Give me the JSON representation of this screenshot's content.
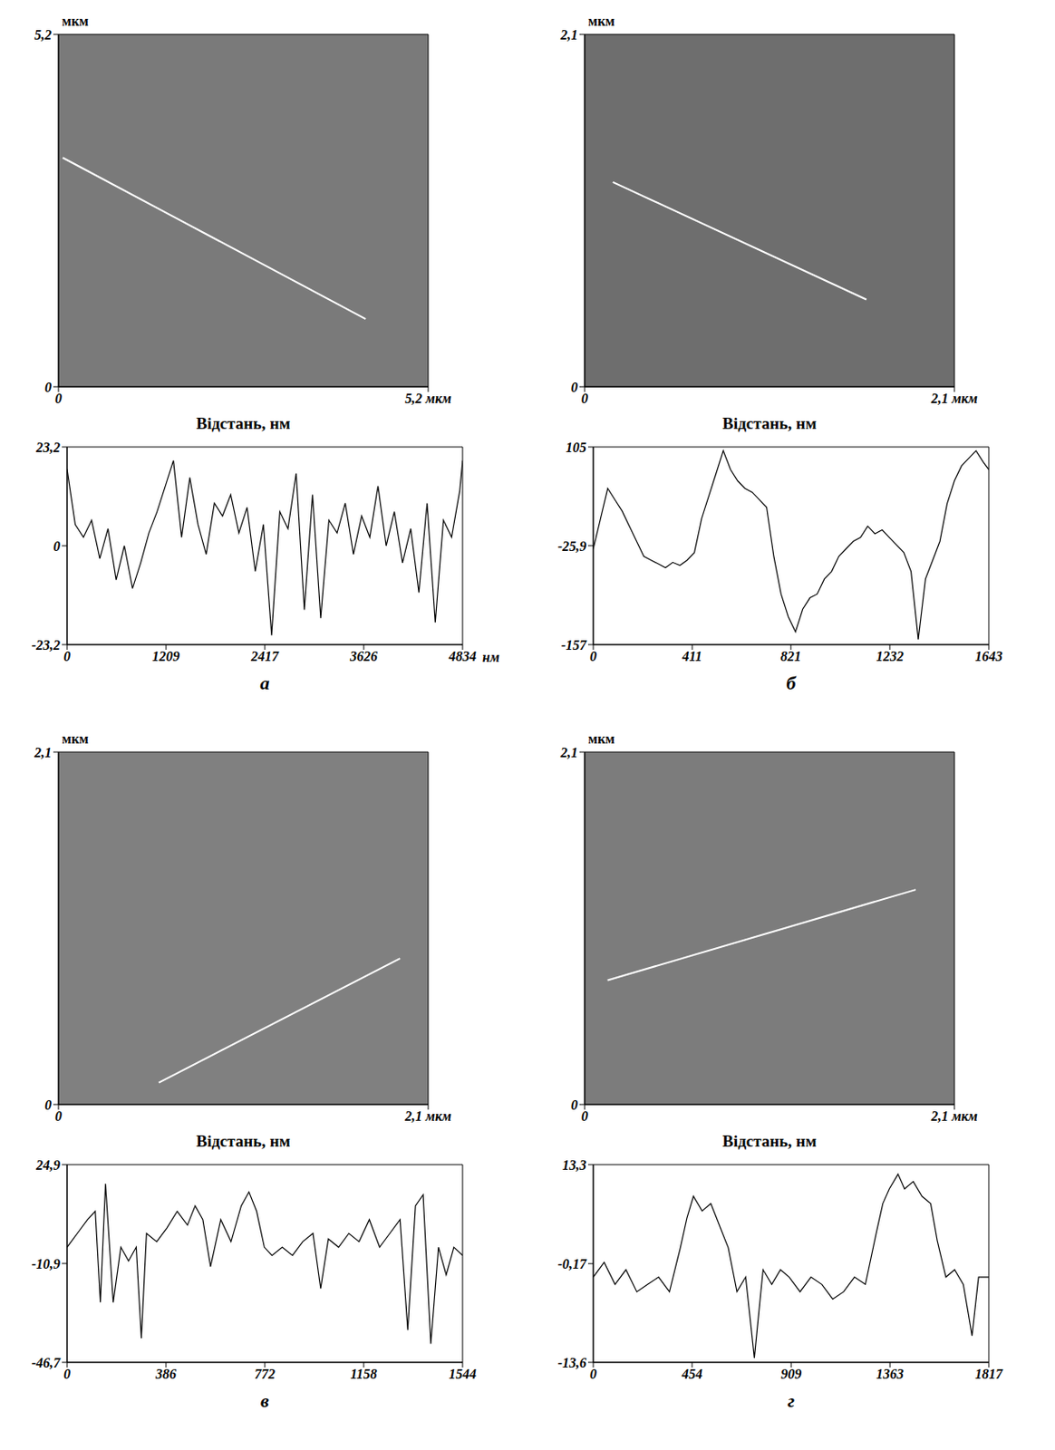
{
  "chart_data": [
    {
      "type": "image",
      "color": "#7a7a7a",
      "xlim": [
        0,
        5.2
      ],
      "ylim": [
        0,
        5.2
      ],
      "xticks": [
        0,
        {
          "value": 5.2,
          "label": "5,2 мкм"
        }
      ],
      "yticks": [
        0,
        {
          "value": 5.2,
          "label": "5,2"
        }
      ],
      "y_label": "мкм",
      "x_label": "Відстань, нм",
      "scan_line": {
        "x": [
          0.06,
          4.32
        ],
        "y": [
          3.38,
          1.0
        ],
        "color": "#ffffff"
      }
    },
    {
      "type": "line",
      "label": "а",
      "color": "#000000",
      "xlim": [
        0,
        4834
      ],
      "ylim": [
        -23.2,
        23.2
      ],
      "xticks": [
        0,
        1209,
        2417,
        3626,
        4834
      ],
      "yticks": [
        {
          "value": 23.2,
          "label": "23,2"
        },
        0,
        {
          "value": -23.2,
          "label": "-23,2"
        }
      ],
      "x_label": "нм",
      "x": [
        0,
        100,
        200,
        300,
        400,
        500,
        600,
        700,
        800,
        900,
        1000,
        1100,
        1200,
        1300,
        1400,
        1500,
        1600,
        1700,
        1800,
        1900,
        2000,
        2100,
        2200,
        2300,
        2400,
        2500,
        2600,
        2700,
        2800,
        2900,
        3000,
        3100,
        3200,
        3300,
        3400,
        3500,
        3600,
        3700,
        3800,
        3900,
        4000,
        4100,
        4200,
        4300,
        4400,
        4500,
        4600,
        4700,
        4800,
        4834
      ],
      "values": [
        18,
        5,
        2,
        6,
        -3,
        4,
        -8,
        0,
        -10,
        -4,
        3,
        8,
        14,
        20,
        2,
        16,
        5,
        -2,
        10,
        7,
        12,
        3,
        9,
        -6,
        5,
        -21,
        8,
        4,
        17,
        -15,
        12,
        -17,
        6,
        3,
        10,
        -2,
        7,
        2,
        14,
        0,
        8,
        -4,
        4,
        -11,
        10,
        -18,
        6,
        2,
        13,
        20
      ]
    },
    {
      "type": "image",
      "color": "#6e6e6e",
      "xlim": [
        0,
        2.1
      ],
      "ylim": [
        0,
        2.1
      ],
      "xticks": [
        0,
        {
          "value": 2.1,
          "label": "2,1 мкм"
        }
      ],
      "yticks": [
        0,
        {
          "value": 2.1,
          "label": "2,1"
        }
      ],
      "y_label": "мкм",
      "x_label": "Відстань, нм",
      "scan_line": {
        "x": [
          0.16,
          1.6
        ],
        "y": [
          1.22,
          0.52
        ],
        "color": "#ffffff"
      }
    },
    {
      "type": "line",
      "label": "б",
      "color": "#000000",
      "xlim": [
        0,
        1643
      ],
      "ylim": [
        -157,
        105
      ],
      "xticks": [
        0,
        411,
        821,
        1232,
        1643
      ],
      "yticks": [
        105,
        {
          "value": -25.9,
          "label": "-25,9"
        },
        -157
      ],
      "x": [
        0,
        30,
        60,
        90,
        120,
        150,
        180,
        210,
        240,
        270,
        300,
        330,
        360,
        390,
        420,
        450,
        480,
        510,
        540,
        570,
        600,
        630,
        660,
        690,
        720,
        750,
        780,
        810,
        840,
        870,
        900,
        930,
        960,
        990,
        1020,
        1050,
        1080,
        1110,
        1140,
        1170,
        1200,
        1230,
        1260,
        1290,
        1320,
        1350,
        1380,
        1410,
        1440,
        1470,
        1500,
        1530,
        1560,
        1590,
        1620,
        1643
      ],
      "values": [
        -30,
        10,
        50,
        35,
        20,
        0,
        -20,
        -40,
        -45,
        -50,
        -55,
        -48,
        -52,
        -45,
        -35,
        10,
        40,
        70,
        100,
        75,
        60,
        50,
        45,
        35,
        25,
        -40,
        -90,
        -120,
        -140,
        -110,
        -95,
        -90,
        -70,
        -60,
        -40,
        -30,
        -20,
        -15,
        0,
        -10,
        -5,
        -15,
        -25,
        -35,
        -60,
        -150,
        -70,
        -45,
        -20,
        30,
        60,
        80,
        90,
        100,
        85,
        75
      ]
    },
    {
      "type": "image",
      "color": "#808080",
      "xlim": [
        0,
        2.1
      ],
      "ylim": [
        0,
        2.1
      ],
      "xticks": [
        0,
        {
          "value": 2.1,
          "label": "2,1 мкм"
        }
      ],
      "yticks": [
        0,
        {
          "value": 2.1,
          "label": "2,1"
        }
      ],
      "y_label": "мкм",
      "x_label": "Відстань, нм",
      "scan_line": {
        "x": [
          0.57,
          1.94
        ],
        "y": [
          0.13,
          0.87
        ],
        "color": "#ffffff"
      }
    },
    {
      "type": "line",
      "label": "в",
      "color": "#000000",
      "xlim": [
        0,
        1544
      ],
      "ylim": [
        -46.7,
        24.9
      ],
      "xticks": [
        0,
        386,
        772,
        1158,
        1544
      ],
      "yticks": [
        {
          "value": 24.9,
          "label": "24,9"
        },
        {
          "value": -10.9,
          "label": "-10,9"
        },
        {
          "value": -46.7,
          "label": "-46,7"
        }
      ],
      "x": [
        0,
        40,
        80,
        110,
        130,
        150,
        180,
        210,
        240,
        270,
        290,
        310,
        350,
        390,
        430,
        470,
        500,
        530,
        560,
        600,
        640,
        680,
        710,
        740,
        770,
        800,
        840,
        880,
        920,
        960,
        990,
        1020,
        1060,
        1100,
        1140,
        1180,
        1220,
        1260,
        1300,
        1330,
        1360,
        1390,
        1420,
        1450,
        1480,
        1510,
        1544
      ],
      "values": [
        -5,
        0,
        5,
        8,
        -25,
        18,
        -25,
        -5,
        -10,
        -5,
        -38,
        0,
        -3,
        2,
        8,
        3,
        10,
        5,
        -12,
        5,
        -3,
        10,
        15,
        8,
        -5,
        -8,
        -5,
        -8,
        -3,
        0,
        -20,
        -2,
        -5,
        0,
        -3,
        5,
        -5,
        0,
        5,
        -35,
        10,
        14,
        -40,
        -5,
        -15,
        -5,
        -8
      ]
    },
    {
      "type": "image",
      "color": "#7c7c7c",
      "xlim": [
        0,
        2.1
      ],
      "ylim": [
        0,
        2.1
      ],
      "xticks": [
        0,
        {
          "value": 2.1,
          "label": "2,1 мкм"
        }
      ],
      "yticks": [
        0,
        {
          "value": 2.1,
          "label": "2,1"
        }
      ],
      "y_label": "мкм",
      "x_label": "Відстань, нм",
      "scan_line": {
        "x": [
          0.13,
          1.88
        ],
        "y": [
          0.74,
          1.28
        ],
        "color": "#ffffff"
      }
    },
    {
      "type": "line",
      "label": "г",
      "color": "#000000",
      "xlim": [
        0,
        1817
      ],
      "ylim": [
        -13.6,
        13.3
      ],
      "xticks": [
        0,
        454,
        909,
        1363,
        1817
      ],
      "yticks": [
        {
          "value": 13.3,
          "label": "13,3"
        },
        {
          "value": -0.17,
          "label": "-0,17"
        },
        {
          "value": -13.6,
          "label": "-13,6"
        }
      ],
      "x": [
        0,
        50,
        100,
        150,
        200,
        250,
        300,
        350,
        400,
        430,
        460,
        500,
        540,
        580,
        620,
        660,
        700,
        740,
        780,
        820,
        860,
        900,
        950,
        1000,
        1050,
        1100,
        1150,
        1200,
        1250,
        1300,
        1330,
        1360,
        1400,
        1430,
        1470,
        1510,
        1550,
        1580,
        1620,
        1660,
        1700,
        1740,
        1770,
        1817
      ],
      "values": [
        -2,
        0,
        -3,
        -1,
        -4,
        -3,
        -2,
        -4,
        2,
        6,
        9,
        7,
        8,
        5,
        2,
        -4,
        -2,
        -13,
        -1,
        -3,
        -1,
        -2,
        -4,
        -2,
        -3,
        -5,
        -4,
        -2,
        -3,
        4,
        8,
        10,
        12,
        10,
        11,
        9,
        8,
        3,
        -2,
        -1,
        -3,
        -10,
        -2,
        -2
      ]
    }
  ]
}
